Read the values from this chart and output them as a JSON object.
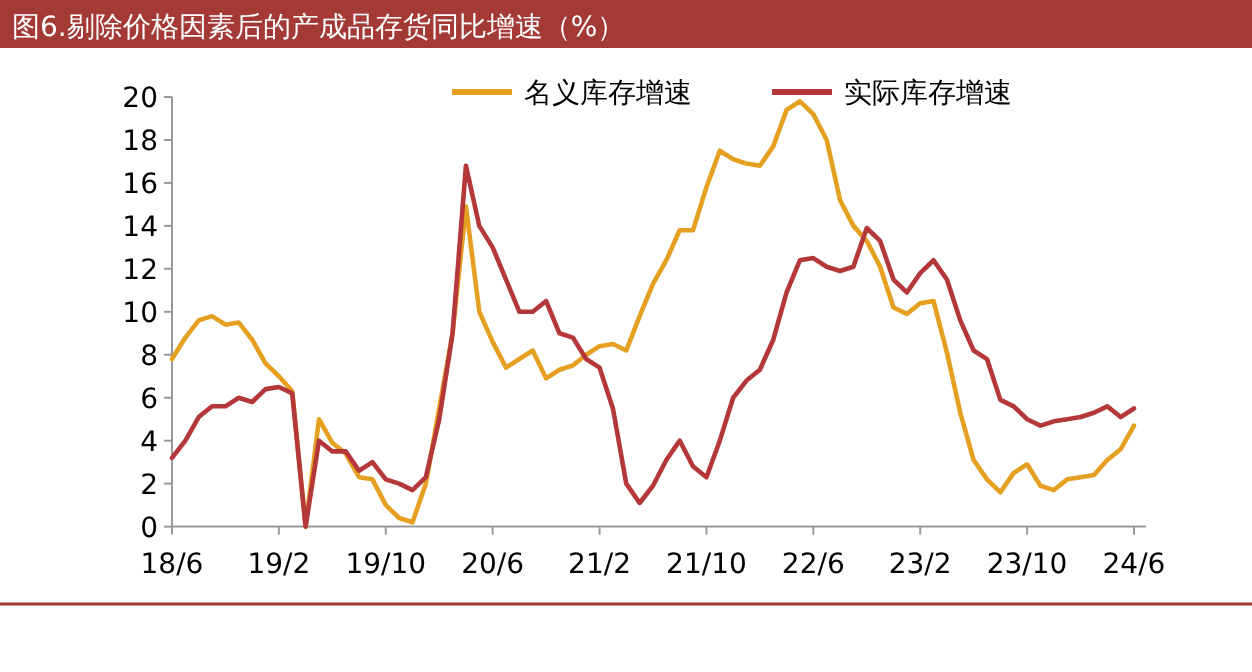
{
  "chart_data": {
    "type": "line",
    "title": "图6.剔除价格因素后的产成品存货同比增速（%）",
    "categories": [
      "18/6",
      null,
      null,
      null,
      null,
      null,
      null,
      null,
      "19/2",
      null,
      null,
      null,
      null,
      null,
      null,
      null,
      "19/10",
      null,
      null,
      null,
      null,
      null,
      null,
      null,
      "20/6",
      null,
      null,
      null,
      null,
      null,
      null,
      null,
      "21/2",
      null,
      null,
      null,
      null,
      null,
      null,
      null,
      "21/10",
      null,
      null,
      null,
      null,
      null,
      null,
      null,
      "22/6",
      null,
      null,
      null,
      null,
      null,
      null,
      null,
      "23/2",
      null,
      null,
      null,
      null,
      null,
      null,
      null,
      "23/10",
      null,
      null,
      null,
      null,
      null,
      null,
      null,
      "24/6"
    ],
    "series": [
      {
        "name": "名义库存增速",
        "color": "#e6a021",
        "values": [
          7.8,
          8.8,
          9.6,
          9.8,
          9.4,
          9.5,
          8.7,
          7.6,
          7.0,
          6.3,
          0,
          5.0,
          3.9,
          3.4,
          2.3,
          2.2,
          1.0,
          0.4,
          0.2,
          2.0,
          5.5,
          9.0,
          14.9,
          10.0,
          8.6,
          7.4,
          7.8,
          8.2,
          6.9,
          7.3,
          7.5,
          8.0,
          8.4,
          8.5,
          8.2,
          9.8,
          11.3,
          12.4,
          13.8,
          13.8,
          15.8,
          17.5,
          17.1,
          16.9,
          16.8,
          17.7,
          19.4,
          19.8,
          19.2,
          18.0,
          15.2,
          14.0,
          13.3,
          12.1,
          10.2,
          9.9,
          10.4,
          10.5,
          8.1,
          5.3,
          3.1,
          2.2,
          1.6,
          2.5,
          2.9,
          1.9,
          1.7,
          2.2,
          2.3,
          2.4,
          3.1,
          3.6,
          4.7
        ]
      },
      {
        "name": "实际库存增速",
        "color": "#b4373a",
        "values": [
          3.2,
          4.0,
          5.1,
          5.6,
          5.6,
          6.0,
          5.8,
          6.4,
          6.5,
          6.2,
          0,
          4.0,
          3.5,
          3.5,
          2.6,
          3.0,
          2.2,
          2.0,
          1.7,
          2.3,
          5.0,
          9.0,
          16.8,
          14.0,
          13.0,
          11.5,
          10.0,
          10.0,
          10.5,
          9.0,
          8.8,
          7.8,
          7.4,
          5.5,
          2.0,
          1.1,
          1.9,
          3.1,
          4.0,
          2.8,
          2.3,
          4.0,
          6.0,
          6.8,
          7.3,
          8.7,
          10.9,
          12.4,
          12.5,
          12.1,
          11.9,
          12.1,
          13.9,
          13.3,
          11.5,
          10.9,
          11.8,
          12.4,
          11.5,
          9.6,
          8.2,
          7.8,
          5.9,
          5.6,
          5.0,
          4.7,
          4.9,
          5.0,
          5.1,
          5.3,
          5.6,
          5.1,
          5.5
        ]
      }
    ],
    "ylim": [
      0,
      20
    ],
    "yticks": [
      0,
      2,
      4,
      6,
      8,
      10,
      12,
      14,
      16,
      18,
      20
    ],
    "legend": "top",
    "grid": false
  }
}
